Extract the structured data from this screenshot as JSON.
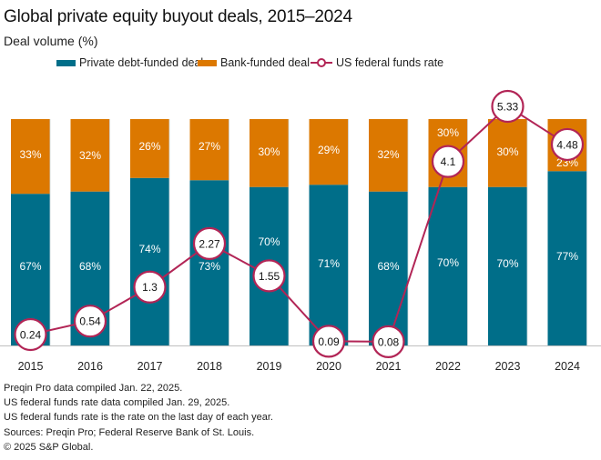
{
  "colors": {
    "private_debt": "#006e89",
    "bank": "#dc7800",
    "rate_line": "#b22556",
    "axis": "#bfbfbf",
    "bar_label": "#ffffff"
  },
  "chart_data": {
    "type": "bar",
    "stacked": true,
    "title": "Global private equity buyout deals, 2015–2024",
    "subtitle": "Deal volume (%)",
    "categories": [
      "2015",
      "2016",
      "2017",
      "2018",
      "2019",
      "2020",
      "2021",
      "2022",
      "2023",
      "2024"
    ],
    "series": [
      {
        "name": "Private debt-funded deal",
        "type": "bar",
        "values": [
          67,
          68,
          74,
          73,
          70,
          71,
          68,
          70,
          70,
          77
        ],
        "labels": [
          "67%",
          "68%",
          "74%",
          "73%",
          "70%",
          "71%",
          "68%",
          "70%",
          "70%",
          "77%"
        ]
      },
      {
        "name": "Bank-funded deal",
        "type": "bar",
        "values": [
          33,
          32,
          26,
          27,
          30,
          29,
          32,
          30,
          30,
          23
        ],
        "labels": [
          "33%",
          "32%",
          "26%",
          "27%",
          "30%",
          "29%",
          "32%",
          "30%",
          "30%",
          "23%"
        ]
      },
      {
        "name": "US federal funds rate",
        "type": "line",
        "values": [
          0.24,
          0.54,
          1.3,
          2.27,
          1.55,
          0.09,
          0.08,
          4.1,
          5.33,
          4.48
        ],
        "labels": [
          "0.24",
          "0.54",
          "1.3",
          "2.27",
          "1.55",
          "0.09",
          "0.08",
          "4.1",
          "5.33",
          "4.48"
        ]
      }
    ],
    "ylim": [
      0,
      100
    ],
    "rate_axis_range": [
      0,
      5.33
    ],
    "grid": false,
    "legend_position": "top-center",
    "xlabel": "",
    "ylabel": ""
  },
  "legend": [
    {
      "label": "Private debt-funded deal"
    },
    {
      "label": "Bank-funded deal"
    },
    {
      "label": "US federal funds rate"
    }
  ],
  "notes": [
    "Preqin Pro data compiled Jan. 22, 2025.",
    "US federal funds rate data compiled Jan. 29, 2025.",
    "US federal funds rate is the rate on the last day of each year.",
    "Sources: Preqin Pro; Federal Reserve Bank of St. Louis.",
    "© 2025 S&P Global."
  ]
}
